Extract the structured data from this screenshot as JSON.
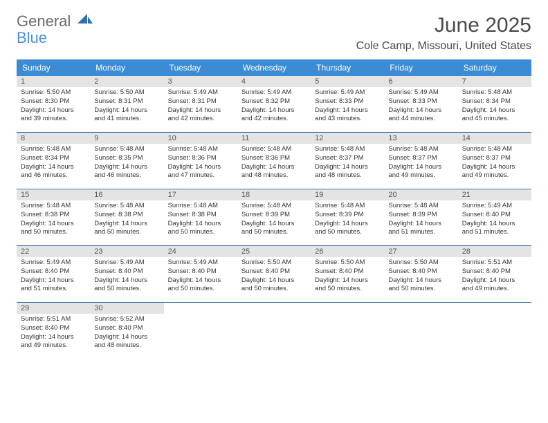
{
  "brand": {
    "line1": "General",
    "line2": "Blue",
    "color_general": "#6b6b6b",
    "color_blue": "#4a90d9",
    "sail_color": "#2f6fb0"
  },
  "title": {
    "month": "June 2025",
    "location": "Cole Camp, Missouri, United States",
    "title_color": "#4a4a4a",
    "title_fontsize": 30,
    "location_fontsize": 16
  },
  "styling": {
    "header_bg": "#3b8cd4",
    "header_text_color": "#ffffff",
    "daynum_bg": "#e4e4e4",
    "daynum_color": "#555555",
    "cell_border_color": "#3b6fa3",
    "body_text_color": "#333333",
    "body_fontsize": 9.5,
    "daynum_fontsize": 11,
    "header_fontsize": 12
  },
  "weekdays": [
    "Sunday",
    "Monday",
    "Tuesday",
    "Wednesday",
    "Thursday",
    "Friday",
    "Saturday"
  ],
  "days": [
    {
      "n": "1",
      "sr": "5:50 AM",
      "ss": "8:30 PM",
      "dl": "14 hours and 39 minutes."
    },
    {
      "n": "2",
      "sr": "5:50 AM",
      "ss": "8:31 PM",
      "dl": "14 hours and 41 minutes."
    },
    {
      "n": "3",
      "sr": "5:49 AM",
      "ss": "8:31 PM",
      "dl": "14 hours and 42 minutes."
    },
    {
      "n": "4",
      "sr": "5:49 AM",
      "ss": "8:32 PM",
      "dl": "14 hours and 42 minutes."
    },
    {
      "n": "5",
      "sr": "5:49 AM",
      "ss": "8:33 PM",
      "dl": "14 hours and 43 minutes."
    },
    {
      "n": "6",
      "sr": "5:49 AM",
      "ss": "8:33 PM",
      "dl": "14 hours and 44 minutes."
    },
    {
      "n": "7",
      "sr": "5:48 AM",
      "ss": "8:34 PM",
      "dl": "14 hours and 45 minutes."
    },
    {
      "n": "8",
      "sr": "5:48 AM",
      "ss": "8:34 PM",
      "dl": "14 hours and 46 minutes."
    },
    {
      "n": "9",
      "sr": "5:48 AM",
      "ss": "8:35 PM",
      "dl": "14 hours and 46 minutes."
    },
    {
      "n": "10",
      "sr": "5:48 AM",
      "ss": "8:36 PM",
      "dl": "14 hours and 47 minutes."
    },
    {
      "n": "11",
      "sr": "5:48 AM",
      "ss": "8:36 PM",
      "dl": "14 hours and 48 minutes."
    },
    {
      "n": "12",
      "sr": "5:48 AM",
      "ss": "8:37 PM",
      "dl": "14 hours and 48 minutes."
    },
    {
      "n": "13",
      "sr": "5:48 AM",
      "ss": "8:37 PM",
      "dl": "14 hours and 49 minutes."
    },
    {
      "n": "14",
      "sr": "5:48 AM",
      "ss": "8:37 PM",
      "dl": "14 hours and 49 minutes."
    },
    {
      "n": "15",
      "sr": "5:48 AM",
      "ss": "8:38 PM",
      "dl": "14 hours and 50 minutes."
    },
    {
      "n": "16",
      "sr": "5:48 AM",
      "ss": "8:38 PM",
      "dl": "14 hours and 50 minutes."
    },
    {
      "n": "17",
      "sr": "5:48 AM",
      "ss": "8:38 PM",
      "dl": "14 hours and 50 minutes."
    },
    {
      "n": "18",
      "sr": "5:48 AM",
      "ss": "8:39 PM",
      "dl": "14 hours and 50 minutes."
    },
    {
      "n": "19",
      "sr": "5:48 AM",
      "ss": "8:39 PM",
      "dl": "14 hours and 50 minutes."
    },
    {
      "n": "20",
      "sr": "5:48 AM",
      "ss": "8:39 PM",
      "dl": "14 hours and 51 minutes."
    },
    {
      "n": "21",
      "sr": "5:49 AM",
      "ss": "8:40 PM",
      "dl": "14 hours and 51 minutes."
    },
    {
      "n": "22",
      "sr": "5:49 AM",
      "ss": "8:40 PM",
      "dl": "14 hours and 51 minutes."
    },
    {
      "n": "23",
      "sr": "5:49 AM",
      "ss": "8:40 PM",
      "dl": "14 hours and 50 minutes."
    },
    {
      "n": "24",
      "sr": "5:49 AM",
      "ss": "8:40 PM",
      "dl": "14 hours and 50 minutes."
    },
    {
      "n": "25",
      "sr": "5:50 AM",
      "ss": "8:40 PM",
      "dl": "14 hours and 50 minutes."
    },
    {
      "n": "26",
      "sr": "5:50 AM",
      "ss": "8:40 PM",
      "dl": "14 hours and 50 minutes."
    },
    {
      "n": "27",
      "sr": "5:50 AM",
      "ss": "8:40 PM",
      "dl": "14 hours and 50 minutes."
    },
    {
      "n": "28",
      "sr": "5:51 AM",
      "ss": "8:40 PM",
      "dl": "14 hours and 49 minutes."
    },
    {
      "n": "29",
      "sr": "5:51 AM",
      "ss": "8:40 PM",
      "dl": "14 hours and 49 minutes."
    },
    {
      "n": "30",
      "sr": "5:52 AM",
      "ss": "8:40 PM",
      "dl": "14 hours and 48 minutes."
    }
  ],
  "labels": {
    "sunrise": "Sunrise:",
    "sunset": "Sunset:",
    "daylight": "Daylight:"
  }
}
